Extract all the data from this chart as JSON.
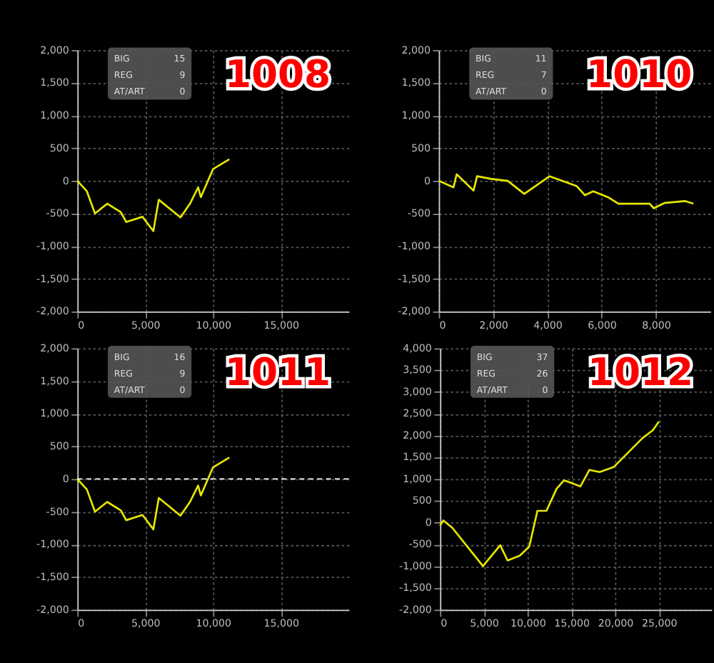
{
  "chart_data": [
    {
      "type": "line",
      "title": "1008",
      "annotations": [
        "BIG",
        "15",
        "REG",
        "9",
        "AT/ART",
        "0"
      ],
      "xlim": [
        0,
        20000
      ],
      "xticks": [
        0,
        {
          "value": 5000,
          "label": "5,000"
        },
        {
          "value": 10000,
          "label": "10,000"
        },
        {
          "value": 15000,
          "label": "15,000"
        }
      ],
      "ylim": [
        -2000,
        2000
      ],
      "yticks": [
        {
          "value": -2000,
          "label": "-2,000"
        },
        {
          "value": -1500,
          "label": "-1,500"
        },
        {
          "value": -1000,
          "label": "-1,000"
        },
        -500,
        0,
        500,
        {
          "value": 1000,
          "label": "1,000"
        },
        {
          "value": 1500,
          "label": "1,500"
        },
        {
          "value": 2000,
          "label": "2,000"
        }
      ],
      "grid": true,
      "series": [
        {
          "color": "#e6e600",
          "x": [
            0,
            700,
            1300,
            2200,
            3200,
            3600,
            4800,
            5600,
            6000,
            7600,
            8300,
            8900,
            9100,
            10000,
            11200
          ],
          "values": [
            0,
            -160,
            -500,
            -350,
            -480,
            -630,
            -550,
            -770,
            -290,
            -560,
            -350,
            -100,
            -250,
            180,
            330
          ]
        }
      ]
    },
    {
      "type": "line",
      "title": "1010",
      "annotations": [
        "BIG",
        "11",
        "REG",
        "7",
        "AT/ART",
        "0"
      ],
      "xlim": [
        0,
        10000
      ],
      "xticks": [
        0,
        {
          "value": 2000,
          "label": "2,000"
        },
        {
          "value": 4000,
          "label": "4,000"
        },
        {
          "value": 6000,
          "label": "6,000"
        },
        {
          "value": 8000,
          "label": "8,000"
        }
      ],
      "ylim": [
        -2000,
        2000
      ],
      "yticks": [
        {
          "value": -2000,
          "label": "-2,000"
        },
        {
          "value": -1500,
          "label": "-1,500"
        },
        {
          "value": -1000,
          "label": "-1,000"
        },
        -500,
        0,
        500,
        {
          "value": 1000,
          "label": "1,000"
        },
        {
          "value": 1500,
          "label": "1,500"
        },
        {
          "value": 2000,
          "label": "2,000"
        }
      ],
      "grid": true,
      "series": [
        {
          "color": "#e6e600",
          "x": [
            0,
            540,
            660,
            1280,
            1410,
            1920,
            2540,
            3150,
            4080,
            5080,
            5380,
            5690,
            6230,
            6620,
            7770,
            7920,
            8310,
            9080,
            9380
          ],
          "values": [
            0,
            -100,
            100,
            -150,
            70,
            30,
            0,
            -200,
            70,
            -80,
            -220,
            -160,
            -250,
            -350,
            -350,
            -420,
            -340,
            -310,
            -350
          ]
        }
      ]
    },
    {
      "type": "line",
      "title": "1011",
      "annotations": [
        "BIG",
        "16",
        "REG",
        "9",
        "AT/ART",
        "0"
      ],
      "xlim": [
        0,
        20000
      ],
      "xticks": [
        0,
        {
          "value": 5000,
          "label": "5,000"
        },
        {
          "value": 10000,
          "label": "10,000"
        },
        {
          "value": 15000,
          "label": "15,000"
        }
      ],
      "ylim": [
        -2000,
        2000
      ],
      "yticks": [
        {
          "value": -2000,
          "label": "-2,000"
        },
        {
          "value": -1500,
          "label": "-1,500"
        },
        {
          "value": -1000,
          "label": "-1,000"
        },
        -500,
        0,
        500,
        {
          "value": 1000,
          "label": "1,000"
        },
        {
          "value": 1500,
          "label": "1,500"
        },
        {
          "value": 2000,
          "label": "2,000"
        }
      ],
      "grid": true,
      "ref_lines": [
        {
          "axis": "y",
          "value": 0,
          "color": "#ffffff",
          "line_style": "dashed"
        }
      ],
      "series": [
        {
          "color": "#e6e600",
          "x": [
            0,
            700,
            1300,
            2200,
            3200,
            3600,
            4800,
            5600,
            6000,
            7600,
            8300,
            8900,
            9100,
            10000,
            11200
          ],
          "values": [
            0,
            -160,
            -500,
            -350,
            -480,
            -630,
            -550,
            -770,
            -290,
            -560,
            -350,
            -100,
            -250,
            180,
            330
          ]
        }
      ]
    },
    {
      "type": "line",
      "title": "1012",
      "annotations": [
        "BIG",
        "37",
        "REG",
        "26",
        "AT/ART",
        "0"
      ],
      "xlim": [
        0,
        31000
      ],
      "xticks": [
        0,
        {
          "value": 5000,
          "label": "5,000"
        },
        {
          "value": 10000,
          "label": "10,000"
        },
        {
          "value": 15000,
          "label": "15,000"
        },
        {
          "value": 20000,
          "label": "20,000"
        },
        {
          "value": 25000,
          "label": "25,000"
        }
      ],
      "ylim": [
        -2000,
        4000
      ],
      "yticks": [
        {
          "value": -2000,
          "label": "-2,000"
        },
        {
          "value": -1500,
          "label": "-1,500"
        },
        {
          "value": -1000,
          "label": "-1,000"
        },
        -500,
        0,
        500,
        {
          "value": 1000,
          "label": "1,000"
        },
        {
          "value": 1500,
          "label": "1,500"
        },
        {
          "value": 2000,
          "label": "2,000"
        },
        {
          "value": 2500,
          "label": "2,500"
        },
        {
          "value": 3000,
          "label": "3,000"
        },
        {
          "value": 3500,
          "label": "3,500"
        },
        {
          "value": 4000,
          "label": "4,000"
        }
      ],
      "grid": true,
      "series": [
        {
          "color": "#e6e600",
          "x": [
            0,
            370,
            1400,
            4900,
            6870,
            7710,
            9110,
            10190,
            11120,
            12150,
            13320,
            14160,
            16030,
            17060,
            18220,
            19860,
            23130,
            24300,
            25000
          ],
          "values": [
            -70,
            50,
            -120,
            -1000,
            -520,
            -870,
            -760,
            -550,
            270,
            270,
            780,
            970,
            830,
            1210,
            1160,
            1280,
            1940,
            2120,
            2320
          ]
        }
      ]
    }
  ]
}
